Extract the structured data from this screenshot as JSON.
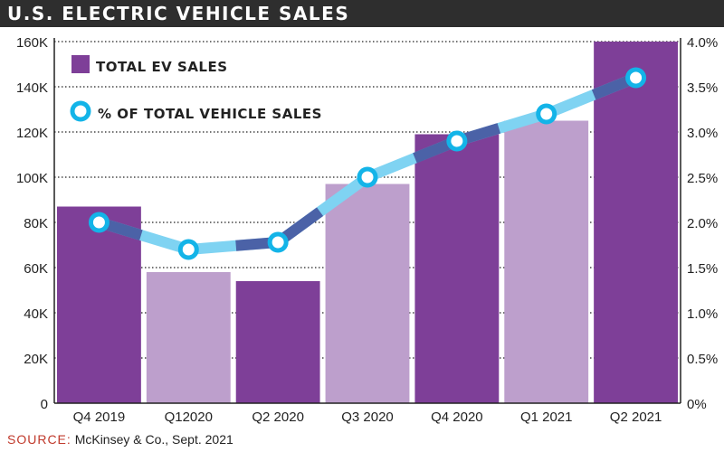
{
  "header": {
    "title": "U.S. ELECTRIC VEHICLE SALES"
  },
  "source": {
    "label": "SOURCE:",
    "text": "McKinsey & Co., Sept. 2021"
  },
  "legend": {
    "bars_label": "TOTAL EV SALES",
    "line_label": "% OF TOTAL VEHICLE SALES"
  },
  "colors": {
    "bar_dark": "#7e3f98",
    "bar_light": "#bd9fcc",
    "line_light": "#7fd3f2",
    "line_dark": "#3a3d8f",
    "marker": "#13b4e8",
    "title_bg": "#2e2e2e"
  },
  "chart_data": {
    "type": "bar",
    "title": "U.S. ELECTRIC VEHICLE SALES",
    "categories": [
      "Q4 2019",
      "Q12020",
      "Q2 2020",
      "Q3 2020",
      "Q4 2020",
      "Q1 2021",
      "Q2 2021"
    ],
    "series": [
      {
        "name": "TOTAL EV SALES",
        "type": "bar",
        "axis": "left",
        "values": [
          87000,
          58000,
          54000,
          97000,
          119000,
          125000,
          160000
        ],
        "shade": [
          "dark",
          "light",
          "dark",
          "light",
          "dark",
          "light",
          "dark"
        ]
      },
      {
        "name": "% OF TOTAL VEHICLE SALES",
        "type": "line",
        "axis": "right",
        "values": [
          2.0,
          1.7,
          1.78,
          2.5,
          2.9,
          3.2,
          3.6
        ]
      }
    ],
    "y_left": {
      "lim": [
        0,
        160000
      ],
      "ticks": [
        "0",
        "20K",
        "40K",
        "60K",
        "80K",
        "100K",
        "120K",
        "140K",
        "160K"
      ]
    },
    "y_right": {
      "lim": [
        0,
        4.0
      ],
      "ticks": [
        "0%",
        "0.5%",
        "1.0%",
        "1.5%",
        "2.0%",
        "2.5%",
        "3.0%",
        "3.5%",
        "4.0%"
      ]
    },
    "grid": "horizontal-dotted",
    "legend_position": "top-left"
  }
}
